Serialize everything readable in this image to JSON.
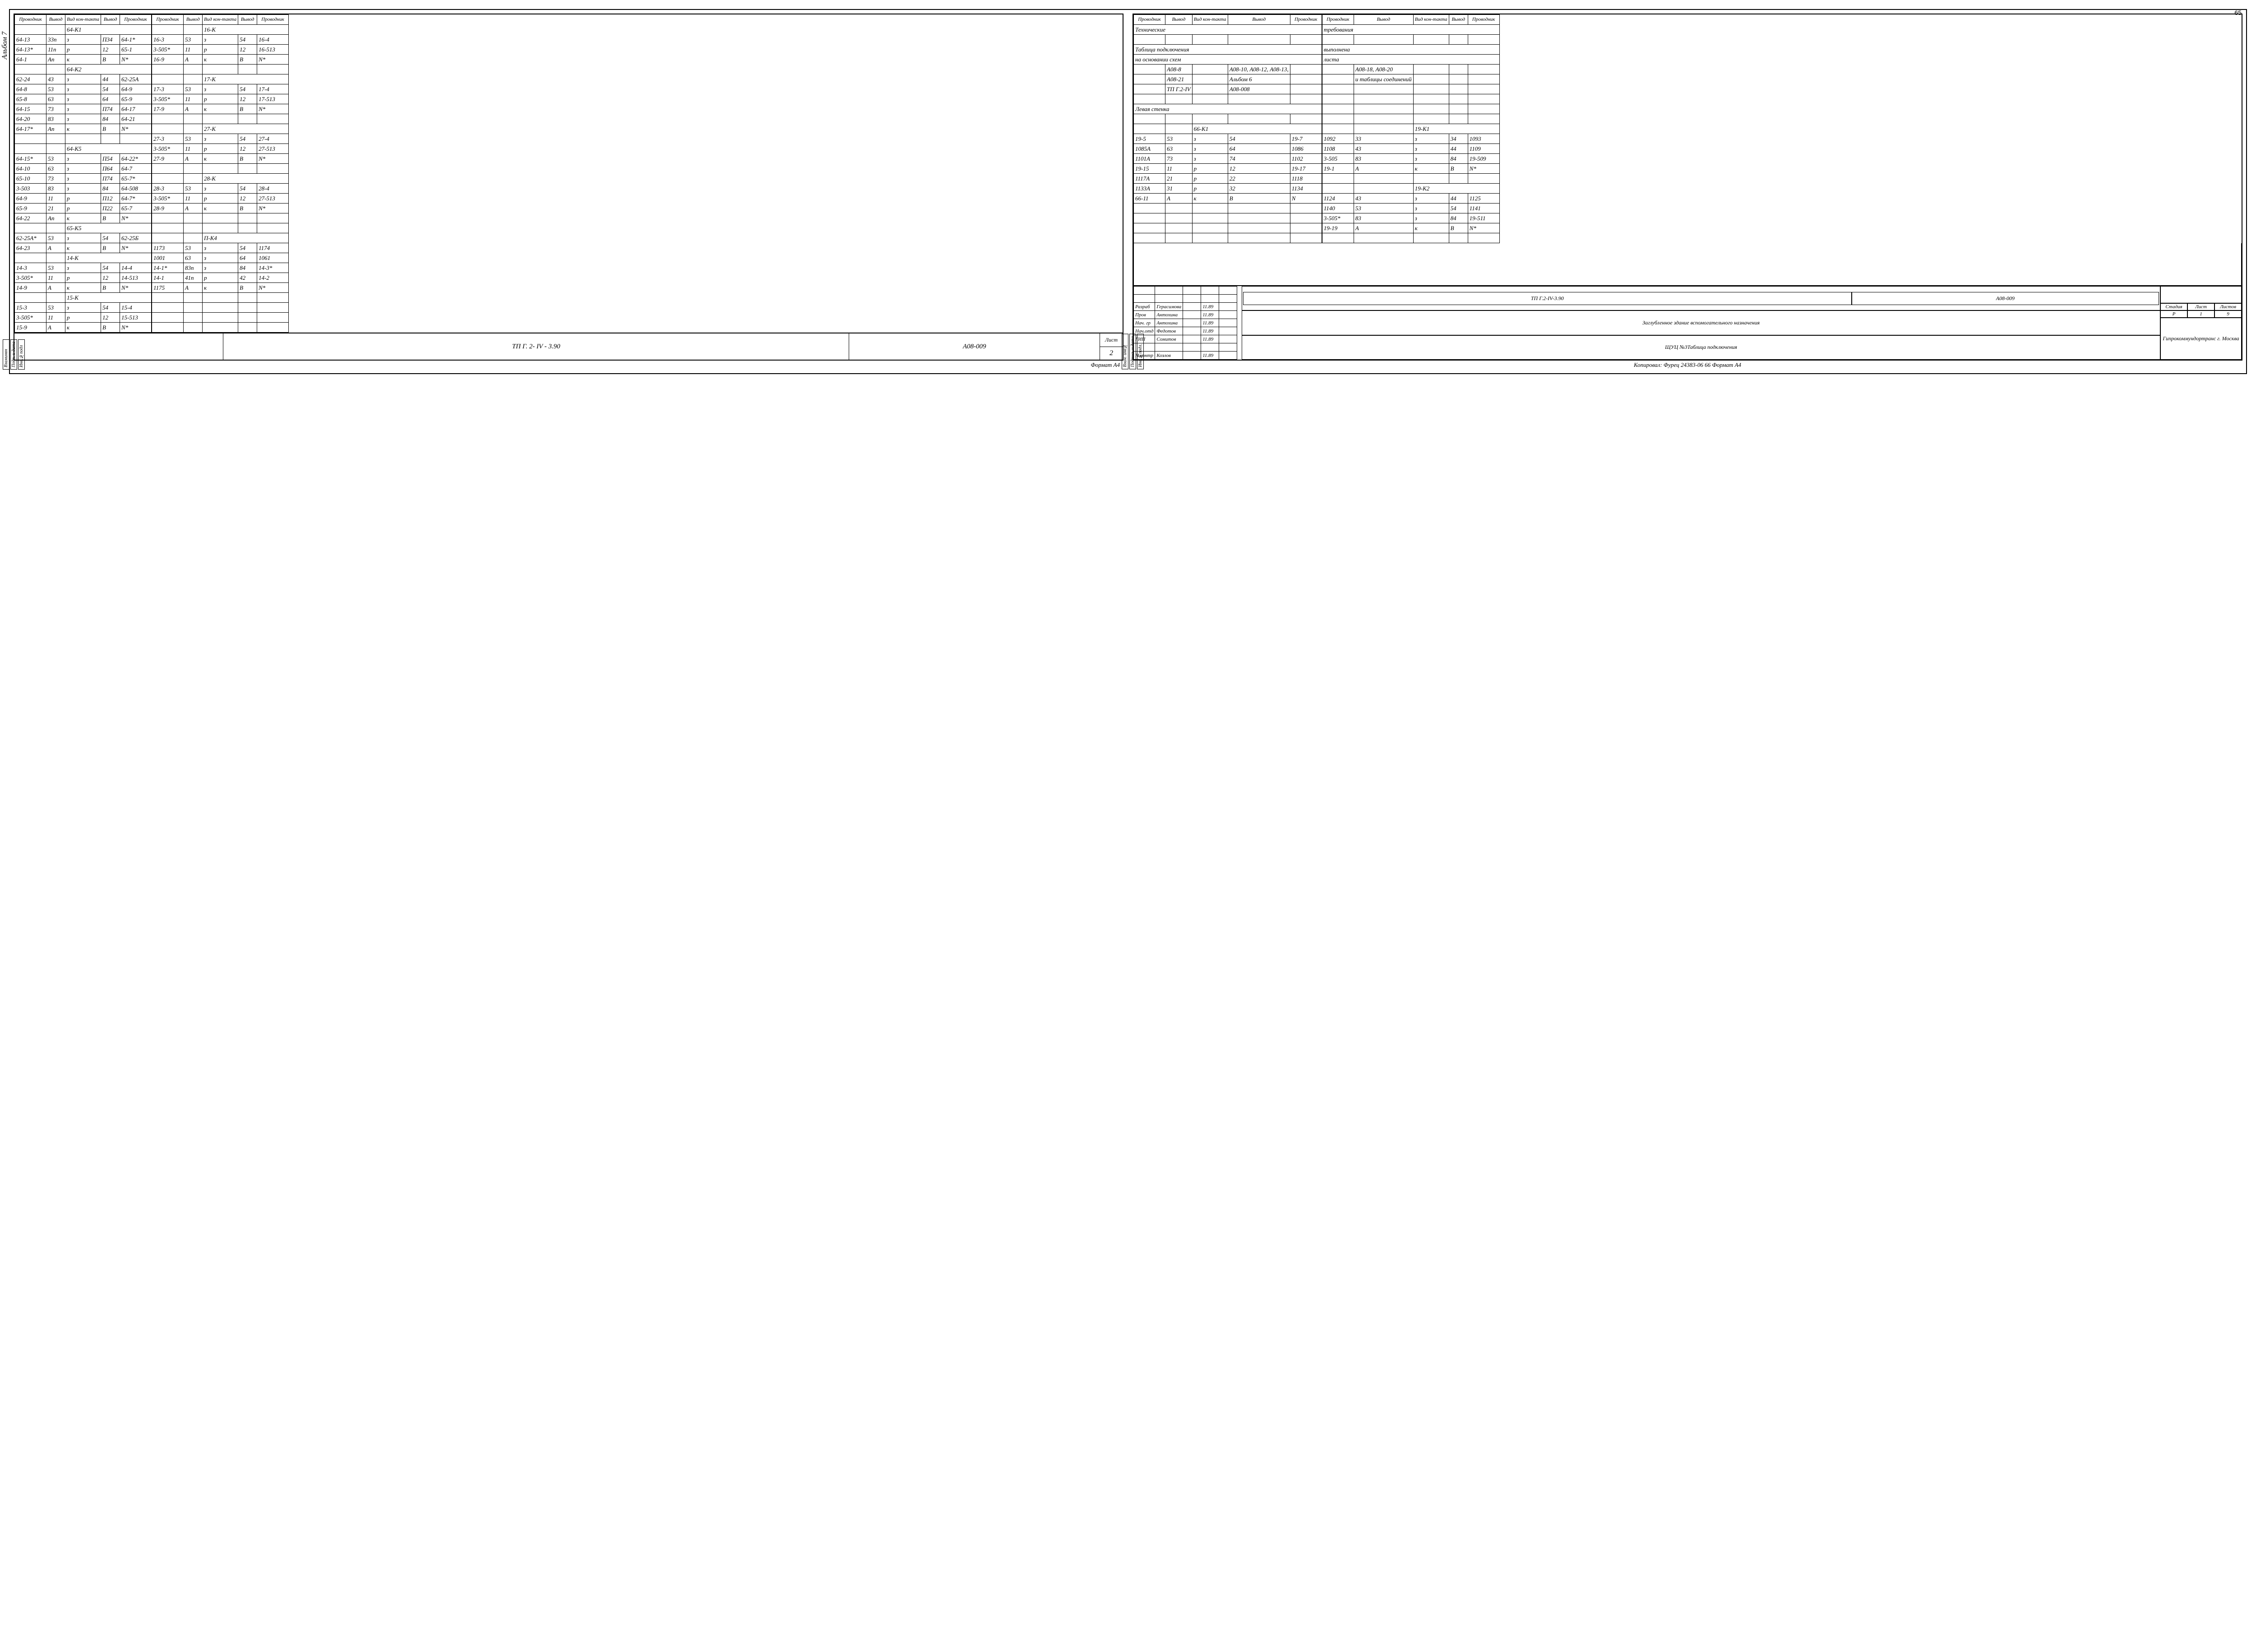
{
  "pageNumber": "65",
  "album": "Альбом 7",
  "columns": [
    "Проводник",
    "Вывод",
    "Вид кон-такта",
    "Вывод",
    "Проводник"
  ],
  "leftStamps": [
    "Взаминвн",
    "Подп. и дата",
    "Инв.№подл"
  ],
  "rightStamps": [
    "Взам. инв№",
    "Подпись и дата",
    "Инв.№подл."
  ],
  "leftTableA": [
    {
      "hdr": "64-К1"
    },
    {
      "r": [
        "64-13",
        "33п",
        "з",
        "П34",
        "64-1*"
      ]
    },
    {
      "r": [
        "64-13*",
        "11п",
        "р",
        "12",
        "65-1"
      ]
    },
    {
      "r": [
        "64-1",
        "Ап",
        "к",
        "В",
        "N*"
      ]
    },
    {
      "hdr": "64-К2"
    },
    {
      "r": [
        "62-24",
        "43",
        "з",
        "44",
        "62-25А"
      ]
    },
    {
      "r": [
        "64-8",
        "53",
        "з",
        "54",
        "64-9"
      ]
    },
    {
      "r": [
        "65-8",
        "63",
        "з",
        "64",
        "65-9"
      ]
    },
    {
      "r": [
        "64-15",
        "73",
        "з",
        "П74",
        "64-17"
      ]
    },
    {
      "r": [
        "64-20",
        "83",
        "з",
        "84",
        "64-21"
      ]
    },
    {
      "r": [
        "64-17*",
        "Ап",
        "к",
        "В",
        "N*"
      ]
    },
    {
      "r": [
        "",
        "",
        "",
        "",
        ""
      ]
    },
    {
      "hdr": "64-К5"
    },
    {
      "r": [
        "64-15*",
        "53",
        "з",
        "П54",
        "64-22*"
      ]
    },
    {
      "r": [
        "64-10",
        "63",
        "з",
        "П64",
        "64-7"
      ]
    },
    {
      "r": [
        "65-10",
        "73",
        "з",
        "П74",
        "65-7*"
      ]
    },
    {
      "r": [
        "3-503",
        "83",
        "з",
        "84",
        "64-508"
      ]
    },
    {
      "r": [
        "64-9",
        "11",
        "р",
        "П12",
        "64-7*"
      ]
    },
    {
      "r": [
        "65-9",
        "21",
        "р",
        "П22",
        "65-7"
      ]
    },
    {
      "r": [
        "64-22",
        "Ап",
        "к",
        "В",
        "N*"
      ]
    },
    {
      "hdr": "65-К5"
    },
    {
      "r": [
        "62-25А*",
        "53",
        "з",
        "54",
        "62-25Б"
      ]
    },
    {
      "r": [
        "64-23",
        "А",
        "к",
        "В",
        "N*"
      ]
    },
    {
      "hdr": "14-К"
    },
    {
      "r": [
        "14-3",
        "53",
        "з",
        "54",
        "14-4"
      ]
    },
    {
      "r": [
        "3-505*",
        "11",
        "р",
        "12",
        "14-513"
      ]
    },
    {
      "r": [
        "14-9",
        "А",
        "к",
        "В",
        "N*"
      ]
    },
    {
      "hdr": "15-К"
    },
    {
      "r": [
        "15-3",
        "53",
        "з",
        "54",
        "15-4"
      ]
    },
    {
      "r": [
        "3-505*",
        "11",
        "р",
        "12",
        "15-513"
      ]
    },
    {
      "r": [
        "15-9",
        "А",
        "к",
        "В",
        "N*"
      ]
    }
  ],
  "leftTableB": [
    {
      "hdr": "16-К"
    },
    {
      "r": [
        "16-3",
        "53",
        "з",
        "54",
        "16-4"
      ]
    },
    {
      "r": [
        "3-505*",
        "11",
        "р",
        "12",
        "16-513"
      ]
    },
    {
      "r": [
        "16-9",
        "А",
        "к",
        "В",
        "N*"
      ]
    },
    {
      "r": [
        "",
        "",
        "",
        "",
        ""
      ]
    },
    {
      "hdr": "17-К"
    },
    {
      "r": [
        "17-3",
        "53",
        "з",
        "54",
        "17-4"
      ]
    },
    {
      "r": [
        "3-505*",
        "11",
        "р",
        "12",
        "17-513"
      ]
    },
    {
      "r": [
        "17-9",
        "А",
        "к",
        "В",
        "N*"
      ]
    },
    {
      "r": [
        "",
        "",
        "",
        "",
        ""
      ]
    },
    {
      "hdr": "27-К"
    },
    {
      "r": [
        "27-3",
        "53",
        "з",
        "54",
        "27-4"
      ]
    },
    {
      "r": [
        "3-505*",
        "11",
        "р",
        "12",
        "27-513"
      ]
    },
    {
      "r": [
        "27-9",
        "А",
        "к",
        "В",
        "N*"
      ]
    },
    {
      "r": [
        "",
        "",
        "",
        "",
        ""
      ]
    },
    {
      "hdr": "28-К"
    },
    {
      "r": [
        "28-3",
        "53",
        "з",
        "54",
        "28-4"
      ]
    },
    {
      "r": [
        "3-505*",
        "11",
        "р",
        "12",
        "27-513"
      ]
    },
    {
      "r": [
        "28-9",
        "А",
        "к",
        "В",
        "N*"
      ]
    },
    {
      "r": [
        "",
        "",
        "",
        "",
        ""
      ]
    },
    {
      "r": [
        "",
        "",
        "",
        "",
        ""
      ]
    },
    {
      "hdr": "П-К4"
    },
    {
      "r": [
        "1173",
        "53",
        "з",
        "54",
        "1174"
      ]
    },
    {
      "r": [
        "1001",
        "63",
        "з",
        "64",
        "1061"
      ]
    },
    {
      "r": [
        "14-1*",
        "83п",
        "з",
        "84",
        "14-3*"
      ]
    },
    {
      "r": [
        "14-1",
        "41п",
        "р",
        "42",
        "14-2"
      ]
    },
    {
      "r": [
        "1175",
        "А",
        "к",
        "В",
        "N*"
      ]
    },
    {
      "r": [
        "",
        "",
        "",
        "",
        ""
      ]
    },
    {
      "r": [
        "",
        "",
        "",
        "",
        ""
      ]
    },
    {
      "r": [
        "",
        "",
        "",
        "",
        ""
      ]
    },
    {
      "r": [
        "",
        "",
        "",
        "",
        ""
      ]
    }
  ],
  "rightTableA": [
    {
      "span": "Технические"
    },
    {
      "r": [
        "",
        "",
        "",
        "",
        ""
      ]
    },
    {
      "span": "Таблица   подключения"
    },
    {
      "span": "на   основании   схем"
    },
    {
      "r": [
        "",
        "А08-8",
        "",
        "А08-10, А08-12, А08-13,",
        ""
      ]
    },
    {
      "r": [
        "",
        "А08-21",
        "",
        "Альбом 6",
        ""
      ]
    },
    {
      "r": [
        "",
        "ТП Г.2-IV",
        "",
        "А08-008",
        ""
      ]
    },
    {
      "r": [
        "",
        "",
        "",
        "",
        ""
      ]
    },
    {
      "span": "Левая   стенка"
    },
    {
      "r": [
        "",
        "",
        "",
        "",
        ""
      ]
    },
    {
      "hdr": "66-К1"
    },
    {
      "r": [
        "19-5",
        "53",
        "з",
        "54",
        "19-7"
      ]
    },
    {
      "r": [
        "1085А",
        "63",
        "з",
        "64",
        "1086"
      ]
    },
    {
      "r": [
        "1101А",
        "73",
        "з",
        "74",
        "1102"
      ]
    },
    {
      "r": [
        "19-15",
        "11",
        "р",
        "12",
        "19-17"
      ]
    },
    {
      "r": [
        "1117А",
        "21",
        "р",
        "22",
        "1118"
      ]
    },
    {
      "r": [
        "1133А",
        "31",
        "р",
        "32",
        "1134"
      ]
    },
    {
      "r": [
        "66-11",
        "А",
        "к",
        "В",
        "N"
      ]
    },
    {
      "r": [
        "",
        "",
        "",
        "",
        ""
      ]
    },
    {
      "r": [
        "",
        "",
        "",
        "",
        ""
      ]
    },
    {
      "r": [
        "",
        "",
        "",
        "",
        ""
      ]
    },
    {
      "r": [
        "",
        "",
        "",
        "",
        ""
      ]
    }
  ],
  "rightTableB": [
    {
      "span": "требования"
    },
    {
      "r": [
        "",
        "",
        "",
        "",
        ""
      ]
    },
    {
      "span": "выполнена"
    },
    {
      "span": "листа"
    },
    {
      "r": [
        "",
        "А08-18, А08-20",
        "",
        "",
        ""
      ]
    },
    {
      "r": [
        "",
        "и таблицы соединений",
        "",
        "",
        ""
      ]
    },
    {
      "r": [
        "",
        "",
        "",
        "",
        ""
      ]
    },
    {
      "r": [
        "",
        "",
        "",
        "",
        ""
      ]
    },
    {
      "r": [
        "",
        "",
        "",
        "",
        ""
      ]
    },
    {
      "r": [
        "",
        "",
        "",
        "",
        ""
      ]
    },
    {
      "hdr": "19-К1"
    },
    {
      "r": [
        "1092",
        "33",
        "з",
        "34",
        "1093"
      ]
    },
    {
      "r": [
        "1108",
        "43",
        "з",
        "44",
        "1109"
      ]
    },
    {
      "r": [
        "3-505",
        "83",
        "з",
        "84",
        "19-509"
      ]
    },
    {
      "r": [
        "19-1",
        "А",
        "к",
        "В",
        "N*"
      ]
    },
    {
      "r": [
        "",
        "",
        "",
        "",
        ""
      ]
    },
    {
      "hdr": "19-К2"
    },
    {
      "r": [
        "1124",
        "43",
        "з",
        "44",
        "1125"
      ]
    },
    {
      "r": [
        "1140",
        "53",
        "з",
        "54",
        "1141"
      ]
    },
    {
      "r": [
        "3-505*",
        "83",
        "з",
        "84",
        "19-511"
      ]
    },
    {
      "r": [
        "19-19",
        "А",
        "к",
        "В",
        "N*"
      ]
    },
    {
      "r": [
        "",
        "",
        "",
        "",
        ""
      ]
    }
  ],
  "leftTitle": {
    "main": "ТП   Г. 2- IV - 3.90",
    "code": "А08-009",
    "sheetLabel": "Лист",
    "sheetNum": "2"
  },
  "rightTitle": {
    "sigs": [
      [
        "Разраб",
        "Герасимова",
        "",
        "11.89"
      ],
      [
        "Пров",
        "Антохина",
        "",
        "11.89"
      ],
      [
        "Нач. гр",
        "Антохина",
        "",
        "11.89"
      ],
      [
        "Нач.отд",
        "Федотов",
        "",
        "11.89"
      ],
      [
        "ГИП",
        "Сомитов",
        "",
        "11.89"
      ],
      [
        "",
        "",
        "",
        ""
      ],
      [
        "Н.контр",
        "Козлов",
        "",
        "11.89"
      ]
    ],
    "projCode": "ТП Г.2-IV-3.90",
    "docCode": "А08-009",
    "desc1": "Заглубленное здание вспомогательного назначения",
    "desc2": "ЩУЦ №3",
    "desc3": "Таблица подключения",
    "stage": "Р",
    "sheet": "1",
    "sheets": "9",
    "org": "Гипрокоммундортранс г. Москва",
    "hdrStage": "Стадия",
    "hdrSheet": "Лист",
    "hdrSheets": "Листов"
  },
  "leftFooter": "Формат А4",
  "rightFooter": "Копировал: Фурец        24383-06   66 Формат А4"
}
